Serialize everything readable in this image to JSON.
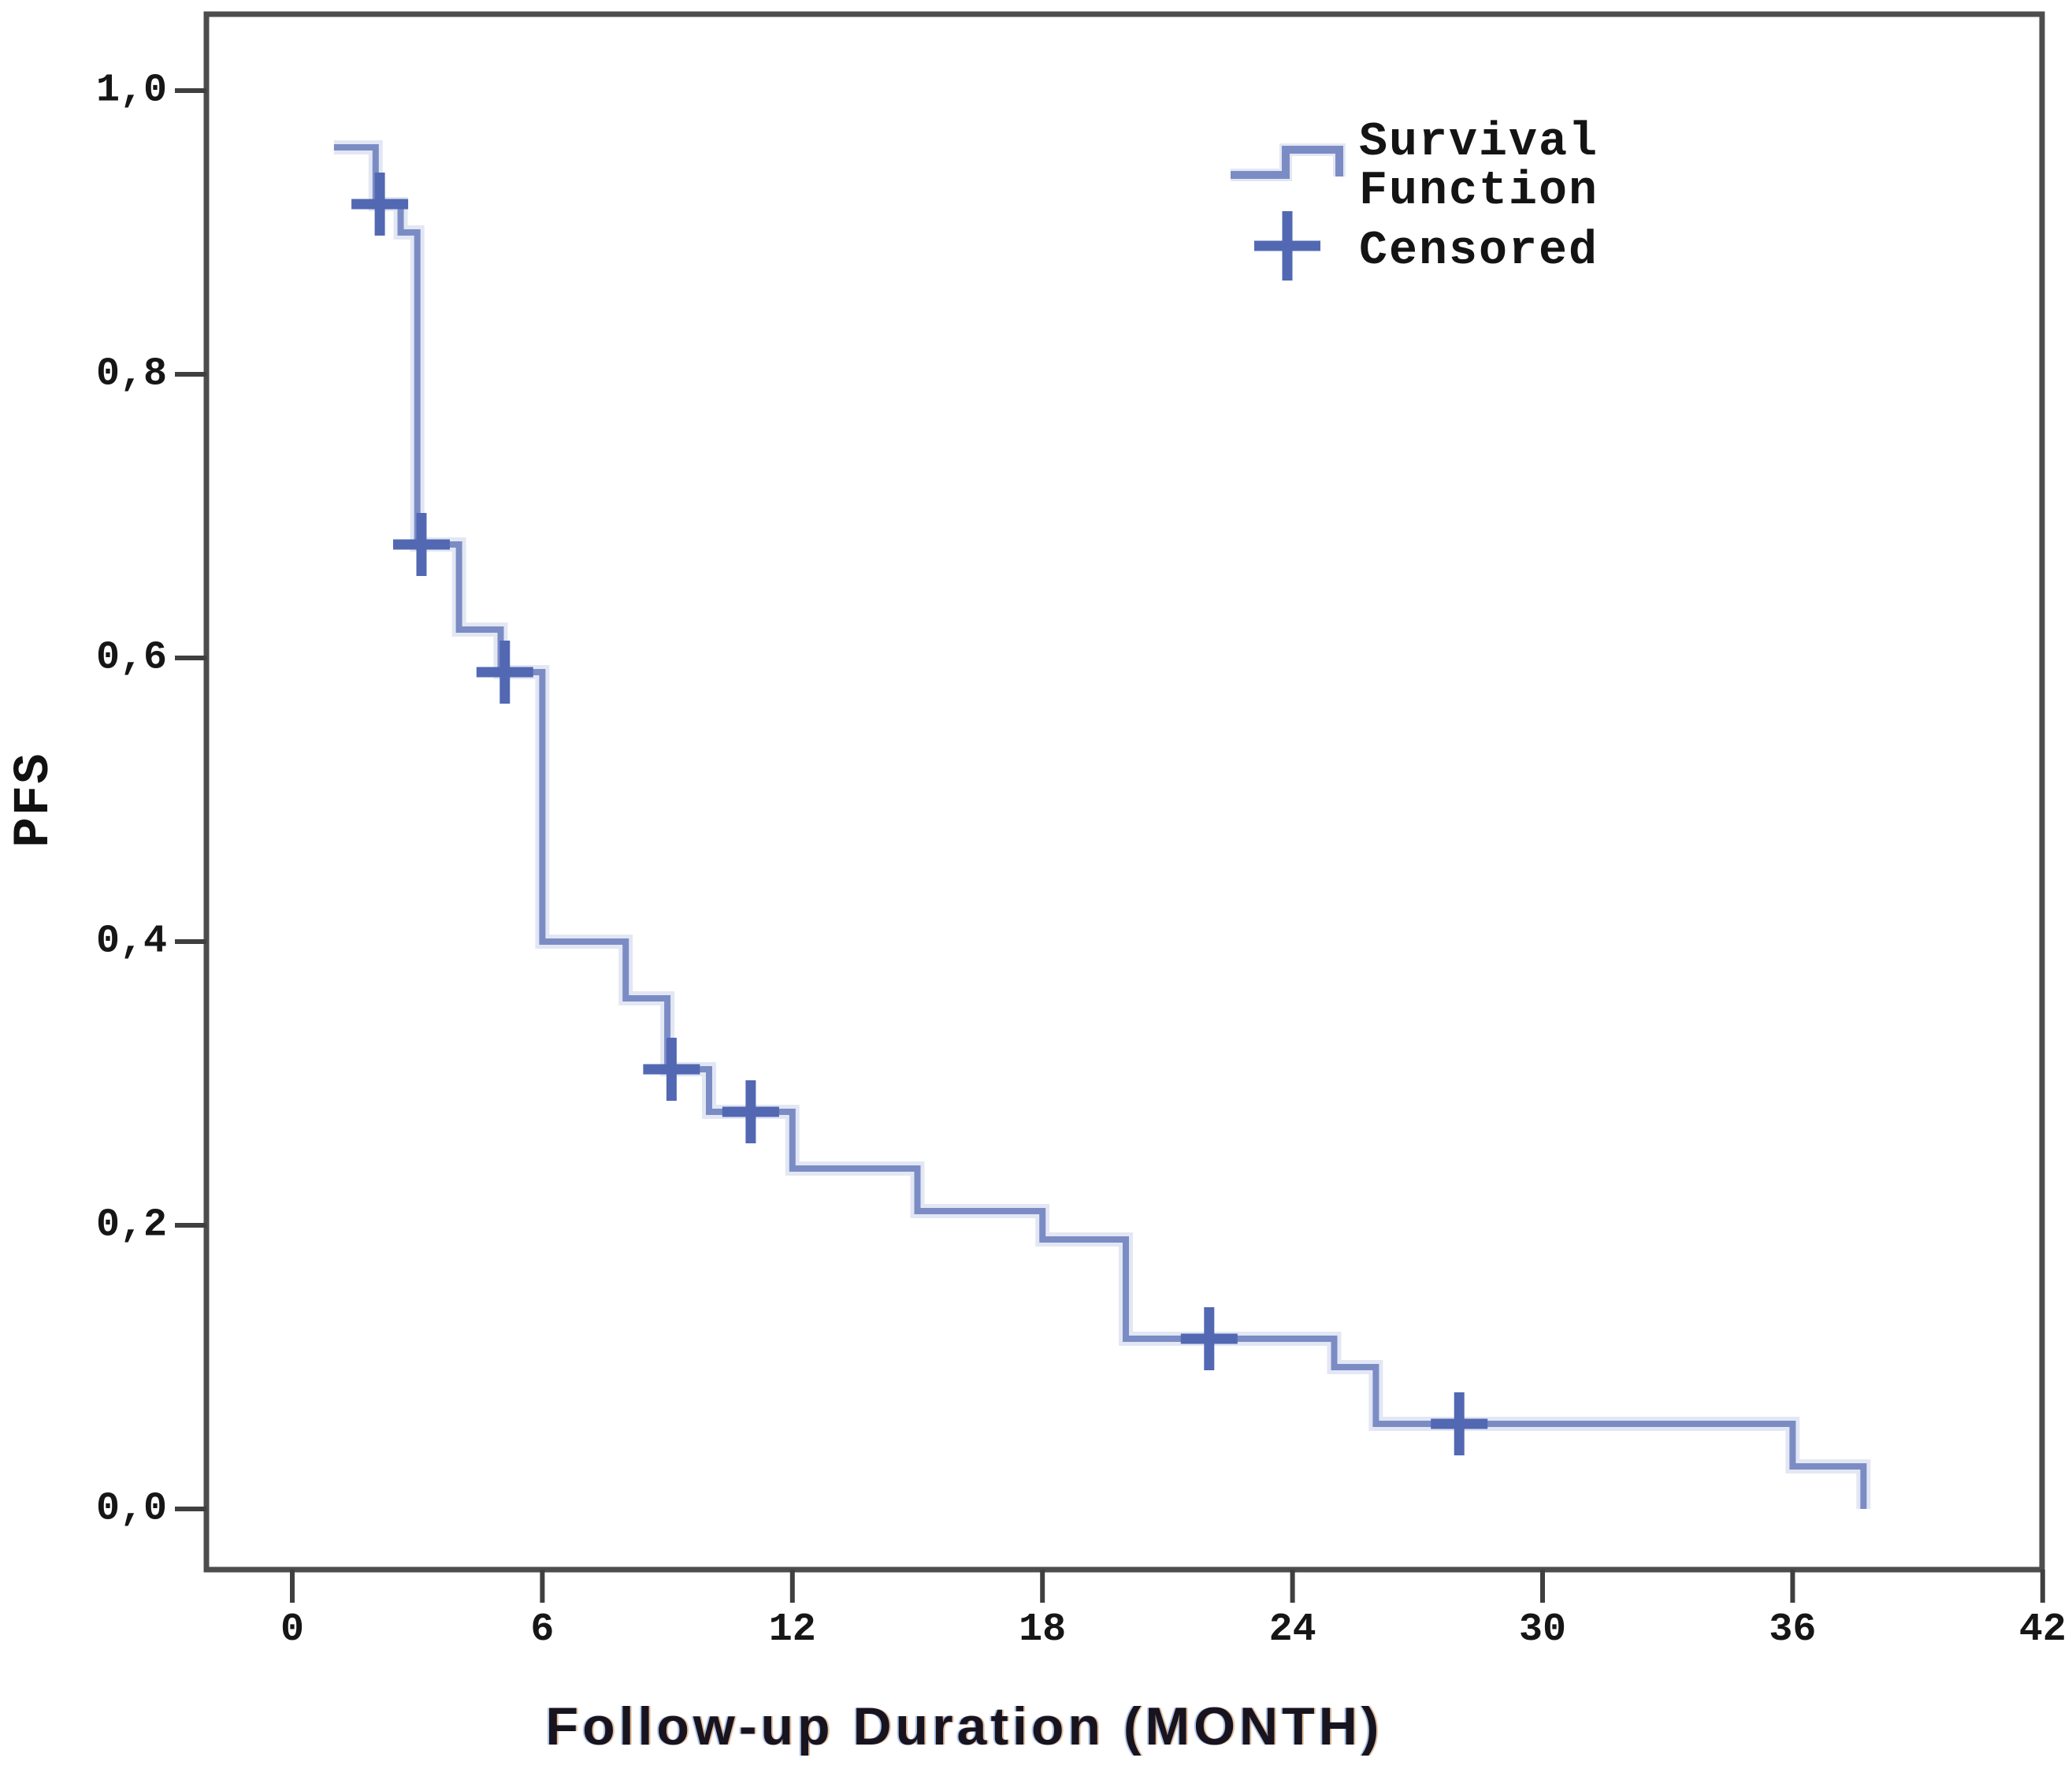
{
  "chart_data": {
    "type": "line",
    "subtype": "kaplan-meier-step-function",
    "title": "",
    "xlabel": "Follow-up Duration (MONTH)",
    "ylabel": "PFS",
    "xlim": [
      0,
      42
    ],
    "ylim": [
      0.0,
      1.0
    ],
    "grid": false,
    "decimal_separator": ",",
    "x_ticks": [
      0,
      6,
      12,
      18,
      24,
      30,
      36,
      42
    ],
    "y_ticks": [
      {
        "label": "1,0",
        "value": 1.0
      },
      {
        "label": "0,8",
        "value": 0.8
      },
      {
        "label": "0,6",
        "value": 0.6
      },
      {
        "label": "0,4",
        "value": 0.4
      },
      {
        "label": "0,2",
        "value": 0.2
      },
      {
        "label": "0,0",
        "value": 0.0
      }
    ],
    "legend_position": "top-right-inside",
    "legend": [
      {
        "label": "Survival Function",
        "symbol": "step-line"
      },
      {
        "label": "Censored",
        "symbol": "plus"
      }
    ],
    "series": [
      {
        "name": "Survival Function",
        "step": "after",
        "points": [
          [
            1,
            0.96
          ],
          [
            2,
            0.92
          ],
          [
            2.6,
            0.9
          ],
          [
            3,
            0.68
          ],
          [
            4,
            0.62
          ],
          [
            5,
            0.59
          ],
          [
            6,
            0.4
          ],
          [
            8,
            0.36
          ],
          [
            9,
            0.31
          ],
          [
            10,
            0.28
          ],
          [
            12,
            0.24
          ],
          [
            15,
            0.21
          ],
          [
            18,
            0.19
          ],
          [
            20,
            0.12
          ],
          [
            25,
            0.1
          ],
          [
            26,
            0.06
          ],
          [
            36,
            0.03
          ],
          [
            37.7,
            0.0
          ]
        ]
      }
    ],
    "censored_points": [
      [
        2.1,
        0.92
      ],
      [
        3.1,
        0.68
      ],
      [
        5.1,
        0.59
      ],
      [
        9.1,
        0.31
      ],
      [
        11,
        0.28
      ],
      [
        22,
        0.12
      ],
      [
        28,
        0.06
      ]
    ],
    "colors": {
      "line": "#7b8cc5",
      "line_halo": "#c7d0ea",
      "censor": "#5268b2",
      "axis": "#4d4d4d",
      "tick": "#3f3f3f",
      "text": "#161616"
    }
  }
}
